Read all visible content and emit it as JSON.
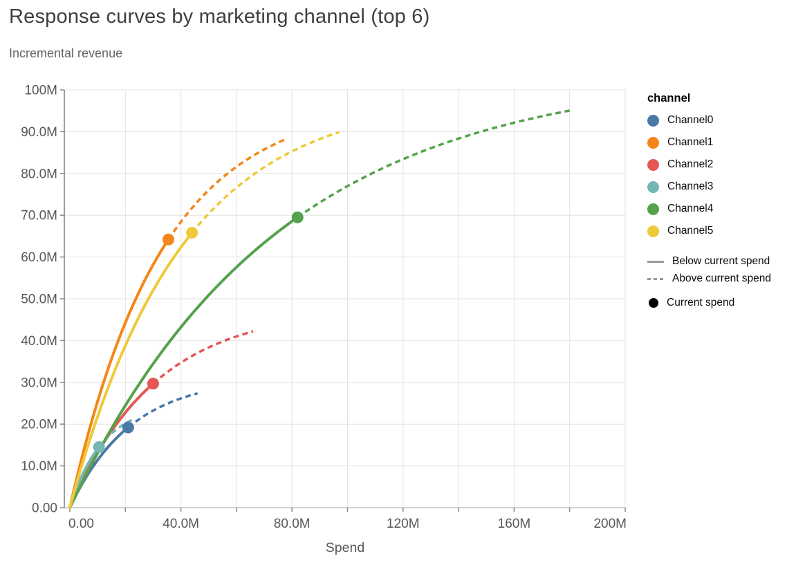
{
  "header": {
    "title": "Response curves by marketing channel (top 6)",
    "subtitle": "Incremental revenue"
  },
  "legend": {
    "title": "channel",
    "channels": [
      {
        "label": "Channel0",
        "color": "#4c78a8"
      },
      {
        "label": "Channel1",
        "color": "#f58518"
      },
      {
        "label": "Channel2",
        "color": "#e45756"
      },
      {
        "label": "Channel3",
        "color": "#72b7b2"
      },
      {
        "label": "Channel4",
        "color": "#54a24b"
      },
      {
        "label": "Channel5",
        "color": "#eeca3b"
      }
    ],
    "below_label": "Below current spend",
    "above_label": "Above current spend",
    "point_label": "Current spend",
    "line_swatch_color": "#9a9a9a",
    "point_swatch_color": "#000000"
  },
  "chart_data": {
    "type": "line",
    "title": "Response curves by marketing channel (top 6)",
    "subtitle": "Incremental revenue",
    "xlabel": "Spend",
    "ylabel": "Incremental revenue",
    "units": "millions",
    "xlim_m": [
      0,
      205
    ],
    "ylim_m": [
      0,
      100
    ],
    "grid": true,
    "legend_position": "right",
    "x_grid_step_m": 20,
    "y_grid_step_m": 10,
    "x_ticks": {
      "values_m": [
        0,
        40,
        80,
        120,
        160,
        200
      ],
      "labels": [
        "0.00",
        "40.0M",
        "80.0M",
        "120M",
        "160M",
        "200M"
      ]
    },
    "y_ticks": {
      "values_m": [
        0,
        10,
        20,
        30,
        40,
        50,
        60,
        70,
        80,
        90,
        100
      ],
      "labels": [
        "0.00",
        "10.0M",
        "20.0M",
        "30.0M",
        "40.0M",
        "50.0M",
        "60.0M",
        "70.0M",
        "80.0M",
        "90.0M",
        "100M"
      ]
    },
    "series": [
      {
        "name": "Channel0",
        "color": "#4c78a8",
        "current_spend_m": 21.0,
        "current_revenue_m": 19.2,
        "max_spend_m": 46.0,
        "max_revenue_m": 27.4,
        "curve": {
          "form": "A*(1-exp(-x/B))",
          "A_m": 31.0,
          "B_m": 22.0
        }
      },
      {
        "name": "Channel1",
        "color": "#f58518",
        "current_spend_m": 35.5,
        "current_revenue_m": 64.2,
        "max_spend_m": 78.0,
        "max_revenue_m": 87.8,
        "curve": {
          "form": "A*(1-exp(-x/B))",
          "A_m": 96.8,
          "B_m": 33.0
        }
      },
      {
        "name": "Channel2",
        "color": "#e45756",
        "current_spend_m": 30.0,
        "current_revenue_m": 29.7,
        "max_spend_m": 66.0,
        "max_revenue_m": 42.0,
        "curve": {
          "form": "A*(1-exp(-x/B))",
          "A_m": 47.6,
          "B_m": 31.0
        }
      },
      {
        "name": "Channel3",
        "color": "#72b7b2",
        "current_spend_m": 10.5,
        "current_revenue_m": 14.5,
        "max_spend_m": 22.5,
        "max_revenue_m": 21.1,
        "curve": {
          "form": "A*(1-exp(-x/B))",
          "A_m": 24.9,
          "B_m": 12.0
        }
      },
      {
        "name": "Channel4",
        "color": "#54a24b",
        "current_spend_m": 82.0,
        "current_revenue_m": 69.5,
        "max_spend_m": 180.0,
        "max_revenue_m": 95.0,
        "curve": {
          "form": "A*(1-exp(-x/B))",
          "A_m": 104.4,
          "B_m": 75.0
        }
      },
      {
        "name": "Channel5",
        "color": "#eeca3b",
        "current_spend_m": 44.0,
        "current_revenue_m": 65.8,
        "max_spend_m": 97.0,
        "max_revenue_m": 89.6,
        "curve": {
          "form": "A*(1-exp(-x/B))",
          "A_m": 98.3,
          "B_m": 40.0
        }
      }
    ],
    "line_style_encoding": {
      "solid": "Below current spend",
      "dashed": "Above current spend"
    },
    "point_encoding": "Current spend"
  },
  "colors": {
    "grid": "#e2e2e2",
    "y_domain": "#7d7d7d",
    "x_domain": "#c2c2c2",
    "tick": "#8a8a8a",
    "tick_label": "#56585a",
    "axis_title": "#56585a"
  }
}
